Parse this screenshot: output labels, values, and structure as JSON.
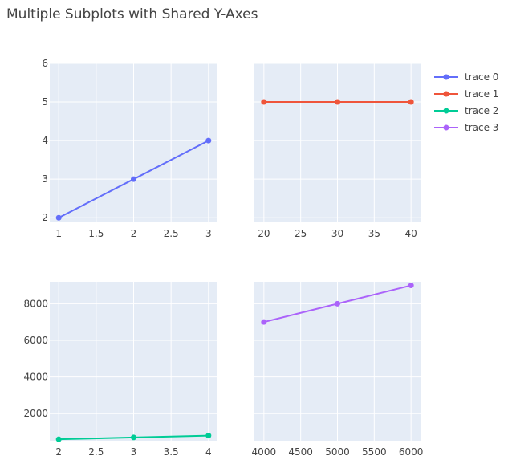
{
  "chart_data": {
    "title": "Multiple Subplots with Shared Y-Axes",
    "type": "line",
    "legend_position": "top-right",
    "colors": {
      "plot_bg": "#E5ECF6",
      "grid": "#FFFFFF",
      "text": "#444444"
    },
    "subplots": [
      {
        "series_index": 0,
        "x": [
          1,
          2,
          3
        ],
        "y": [
          2,
          3,
          4
        ],
        "xlim": [
          0.88,
          3.12
        ],
        "ylim": [
          1.88,
          6
        ],
        "xticks": [
          1,
          1.5,
          2,
          2.5,
          3
        ],
        "xtick_labels": [
          "1",
          "1.5",
          "2",
          "2.5",
          "3"
        ],
        "yticks": [
          2,
          3,
          4,
          5,
          6
        ],
        "ytick_labels": [
          "2",
          "3",
          "4",
          "5",
          "6"
        ],
        "show_y_labels": true
      },
      {
        "series_index": 1,
        "x": [
          20,
          30,
          40
        ],
        "y": [
          5,
          5,
          5
        ],
        "xlim": [
          18.6,
          41.4
        ],
        "ylim": [
          1.88,
          6
        ],
        "xticks": [
          20,
          25,
          30,
          35,
          40
        ],
        "xtick_labels": [
          "20",
          "25",
          "30",
          "35",
          "40"
        ],
        "yticks": [
          2,
          3,
          4,
          5,
          6
        ],
        "ytick_labels": [],
        "show_y_labels": false
      },
      {
        "series_index": 2,
        "x": [
          2,
          3,
          4
        ],
        "y": [
          600,
          700,
          800
        ],
        "xlim": [
          1.88,
          4.12
        ],
        "ylim": [
          520,
          9200
        ],
        "xticks": [
          2,
          2.5,
          3,
          3.5,
          4
        ],
        "xtick_labels": [
          "2",
          "2.5",
          "3",
          "3.5",
          "4"
        ],
        "yticks": [
          2000,
          4000,
          6000,
          8000
        ],
        "ytick_labels": [
          "2000",
          "4000",
          "6000",
          "8000"
        ],
        "show_y_labels": true
      },
      {
        "series_index": 3,
        "x": [
          4000,
          5000,
          6000
        ],
        "y": [
          7000,
          8000,
          9000
        ],
        "xlim": [
          3860,
          6140
        ],
        "ylim": [
          520,
          9200
        ],
        "xticks": [
          4000,
          4500,
          5000,
          5500,
          6000
        ],
        "xtick_labels": [
          "4000",
          "4500",
          "5000",
          "5500",
          "6000"
        ],
        "yticks": [
          2000,
          4000,
          6000,
          8000
        ],
        "ytick_labels": [],
        "show_y_labels": false
      }
    ],
    "series": [
      {
        "name": "trace 0",
        "color": "#636EFA"
      },
      {
        "name": "trace 1",
        "color": "#EF553B"
      },
      {
        "name": "trace 2",
        "color": "#00CC96"
      },
      {
        "name": "trace 3",
        "color": "#AB63FA"
      }
    ]
  }
}
